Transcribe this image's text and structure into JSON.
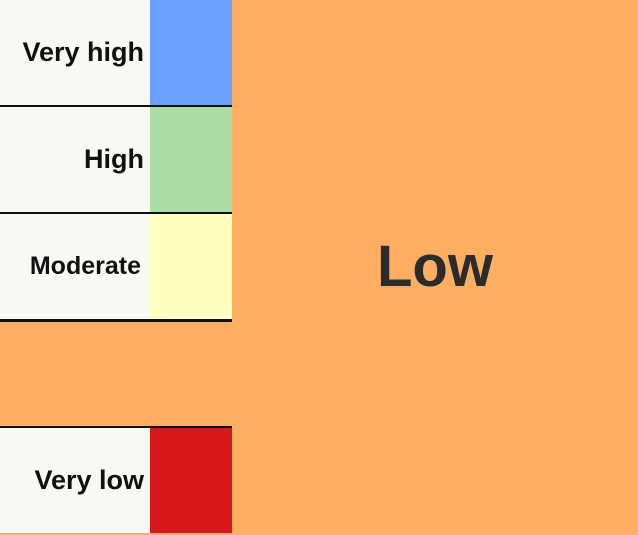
{
  "big": {
    "label": "Low",
    "color": "#fdae61"
  },
  "legend": {
    "items": [
      {
        "key": "very-high",
        "label": "Very high",
        "color": "#6aa1ff"
      },
      {
        "key": "high",
        "label": "High",
        "color": "#abdda4"
      },
      {
        "key": "moderate",
        "label": "Moderate",
        "color": "#ffffbf"
      },
      {
        "key": "low",
        "label": "",
        "color": "#fdae61"
      },
      {
        "key": "very-low",
        "label": "Very low",
        "color": "#d7191c"
      }
    ]
  }
}
